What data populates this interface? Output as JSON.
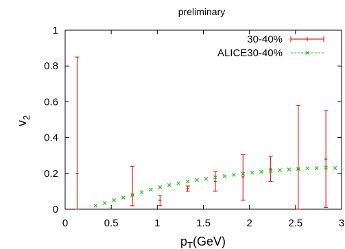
{
  "chart_data": {
    "type": "scatter",
    "title": "preliminary",
    "xlabel_main": "p",
    "xlabel_sub": "T",
    "xlabel_rest": "(GeV)",
    "ylabel_main": "v",
    "ylabel_sub": "2",
    "xlim": [
      0,
      3
    ],
    "ylim": [
      0,
      1
    ],
    "xticks": [
      0,
      0.5,
      1,
      1.5,
      2,
      2.5,
      3
    ],
    "xtick_labels": [
      "0",
      "0.5",
      "1",
      "1.5",
      "2",
      "2.5",
      "3"
    ],
    "yticks": [
      0,
      0.2,
      0.4,
      0.6,
      0.8,
      1
    ],
    "ytick_labels": [
      "0",
      "0.2",
      "0.4",
      "0.6",
      "0.8",
      "1"
    ],
    "grid": false,
    "legend_position": "top-right",
    "series": [
      {
        "name": "30-40%",
        "color": "#e8201c",
        "style": "errorbars",
        "points": [
          {
            "x": 0.13,
            "y": 0.2,
            "ylow": 0.0,
            "yhigh": 0.85
          },
          {
            "x": 0.73,
            "y": 0.08,
            "ylow": 0.02,
            "yhigh": 0.24
          },
          {
            "x": 1.03,
            "y": 0.05,
            "ylow": 0.02,
            "yhigh": 0.075
          },
          {
            "x": 1.33,
            "y": 0.115,
            "ylow": 0.1,
            "yhigh": 0.13
          },
          {
            "x": 1.63,
            "y": 0.155,
            "ylow": 0.1,
            "yhigh": 0.21
          },
          {
            "x": 1.93,
            "y": 0.18,
            "ylow": 0.05,
            "yhigh": 0.305
          },
          {
            "x": 2.23,
            "y": 0.225,
            "ylow": 0.155,
            "yhigh": 0.295
          },
          {
            "x": 2.53,
            "y": 0.225,
            "ylow": 0.0,
            "yhigh": 0.58
          },
          {
            "x": 2.83,
            "y": 0.28,
            "ylow": 0.01,
            "yhigh": 0.55
          }
        ]
      },
      {
        "name": "ALICE30-40%",
        "color": "#1fbf1f",
        "style": "markers",
        "points": [
          {
            "x": 0.33,
            "y": 0.02
          },
          {
            "x": 0.43,
            "y": 0.035
          },
          {
            "x": 0.53,
            "y": 0.05
          },
          {
            "x": 0.63,
            "y": 0.065
          },
          {
            "x": 0.73,
            "y": 0.08
          },
          {
            "x": 0.83,
            "y": 0.095
          },
          {
            "x": 0.93,
            "y": 0.11
          },
          {
            "x": 1.03,
            "y": 0.123
          },
          {
            "x": 1.13,
            "y": 0.135
          },
          {
            "x": 1.23,
            "y": 0.145
          },
          {
            "x": 1.33,
            "y": 0.155
          },
          {
            "x": 1.43,
            "y": 0.163
          },
          {
            "x": 1.53,
            "y": 0.17
          },
          {
            "x": 1.63,
            "y": 0.178
          },
          {
            "x": 1.73,
            "y": 0.185
          },
          {
            "x": 1.83,
            "y": 0.192
          },
          {
            "x": 1.93,
            "y": 0.198
          },
          {
            "x": 2.03,
            "y": 0.204
          },
          {
            "x": 2.13,
            "y": 0.209
          },
          {
            "x": 2.23,
            "y": 0.214
          },
          {
            "x": 2.33,
            "y": 0.218
          },
          {
            "x": 2.43,
            "y": 0.222
          },
          {
            "x": 2.53,
            "y": 0.225
          },
          {
            "x": 2.63,
            "y": 0.228
          },
          {
            "x": 2.73,
            "y": 0.23
          },
          {
            "x": 2.83,
            "y": 0.232
          },
          {
            "x": 2.93,
            "y": 0.23
          }
        ]
      }
    ]
  }
}
